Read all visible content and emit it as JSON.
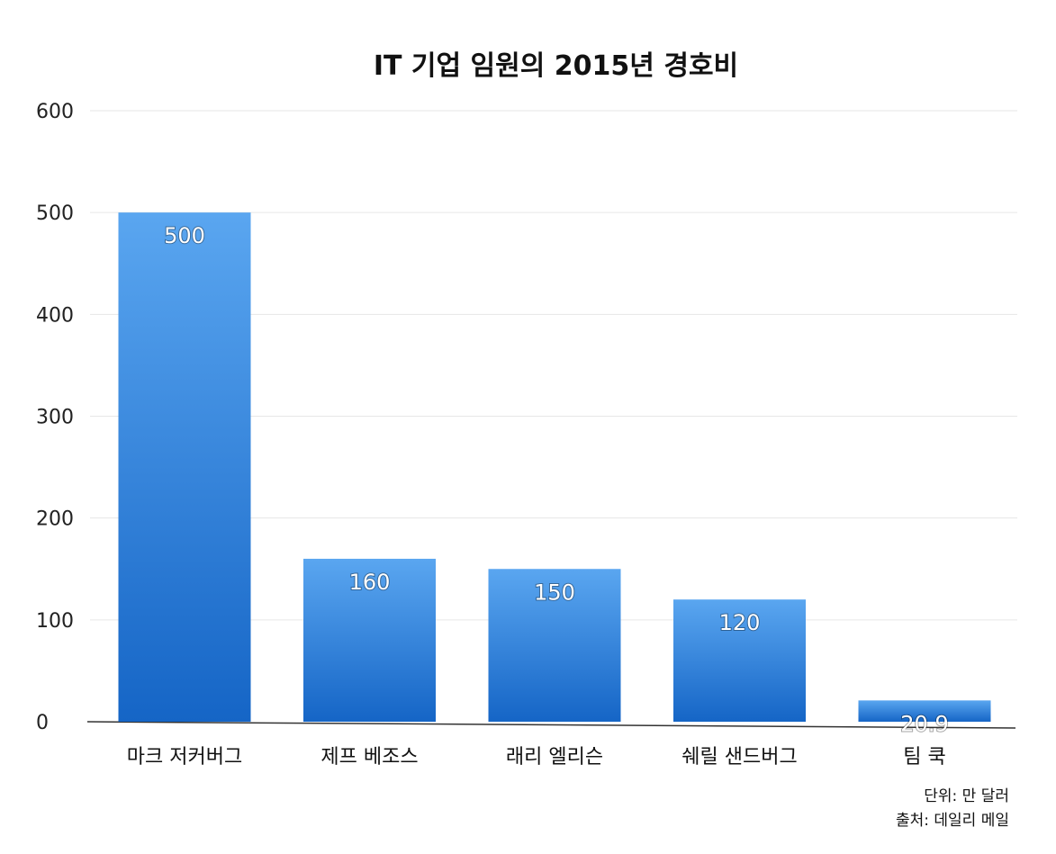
{
  "chart_data": {
    "type": "bar",
    "title": "IT 기업 임원의 2015년 경호비",
    "categories": [
      "마크 저커버그",
      "제프 베조스",
      "래리 엘리슨",
      "쉐릴 샌드버그",
      "팀 쿡"
    ],
    "values": [
      500,
      160,
      150,
      120,
      20.9
    ],
    "value_labels": [
      "500",
      "160",
      "150",
      "120",
      "20.9"
    ],
    "ylim": [
      0,
      600
    ],
    "yticks": [
      0,
      100,
      200,
      300,
      400,
      500,
      600
    ],
    "grid": true,
    "bar_color_top": "#5aa6f0",
    "bar_color_bottom": "#1565c6"
  },
  "notes": {
    "unit": "단위: 만 달러",
    "source": "출처: 데일리 메일"
  }
}
